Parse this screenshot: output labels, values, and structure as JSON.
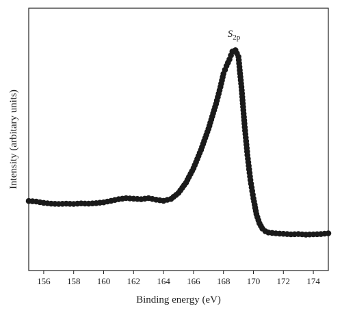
{
  "chart_data": {
    "type": "scatter",
    "xlabel": "Binding energy (eV)",
    "ylabel": "Intensity (arbitary units)",
    "xlim": [
      155,
      175
    ],
    "ylim": [
      0,
      100
    ],
    "x_ticks": [
      156,
      158,
      160,
      162,
      164,
      166,
      168,
      170,
      172,
      174
    ],
    "x_tick_labels": [
      "156",
      "158",
      "160",
      "162",
      "164",
      "166",
      "168",
      "170",
      "172",
      "174"
    ],
    "y_ticks": [],
    "grid": false,
    "legend": "none",
    "line_and_markers": true,
    "marker_color": "#1a1a1a",
    "annotations": [
      {
        "text_main": "S",
        "text_sub": "2p",
        "x": 168.7,
        "y": 89
      }
    ],
    "series": [
      {
        "x": [
          155.0,
          155.5,
          156.0,
          156.5,
          157.0,
          157.5,
          158.0,
          158.5,
          159.0,
          159.5,
          160.0,
          160.5,
          161.0,
          161.5,
          162.0,
          162.5,
          163.0,
          163.5,
          164.0,
          164.5,
          165.0,
          165.5,
          166.0,
          166.5,
          167.0,
          167.5,
          167.8,
          168.0,
          168.2,
          168.4,
          168.6,
          168.8,
          169.0,
          169.2,
          169.4,
          169.6,
          169.8,
          170.0,
          170.2,
          170.4,
          170.6,
          170.8,
          171.0,
          171.5,
          172.0,
          172.5,
          173.0,
          173.5,
          174.0,
          174.5,
          175.0
        ],
        "y": [
          26.5,
          26.3,
          25.8,
          25.5,
          25.4,
          25.5,
          25.4,
          25.6,
          25.5,
          25.7,
          26.0,
          26.6,
          27.2,
          27.6,
          27.4,
          27.2,
          27.6,
          27.0,
          26.6,
          27.3,
          29.6,
          33.5,
          39.0,
          46.0,
          54.0,
          63.5,
          70.0,
          75.0,
          78.0,
          80.5,
          83.5,
          84.0,
          81.5,
          70.0,
          56.0,
          44.0,
          34.5,
          27.5,
          21.5,
          18.0,
          16.0,
          15.0,
          14.5,
          14.2,
          14.0,
          13.8,
          13.9,
          13.7,
          13.8,
          13.9,
          14.2
        ]
      }
    ]
  }
}
